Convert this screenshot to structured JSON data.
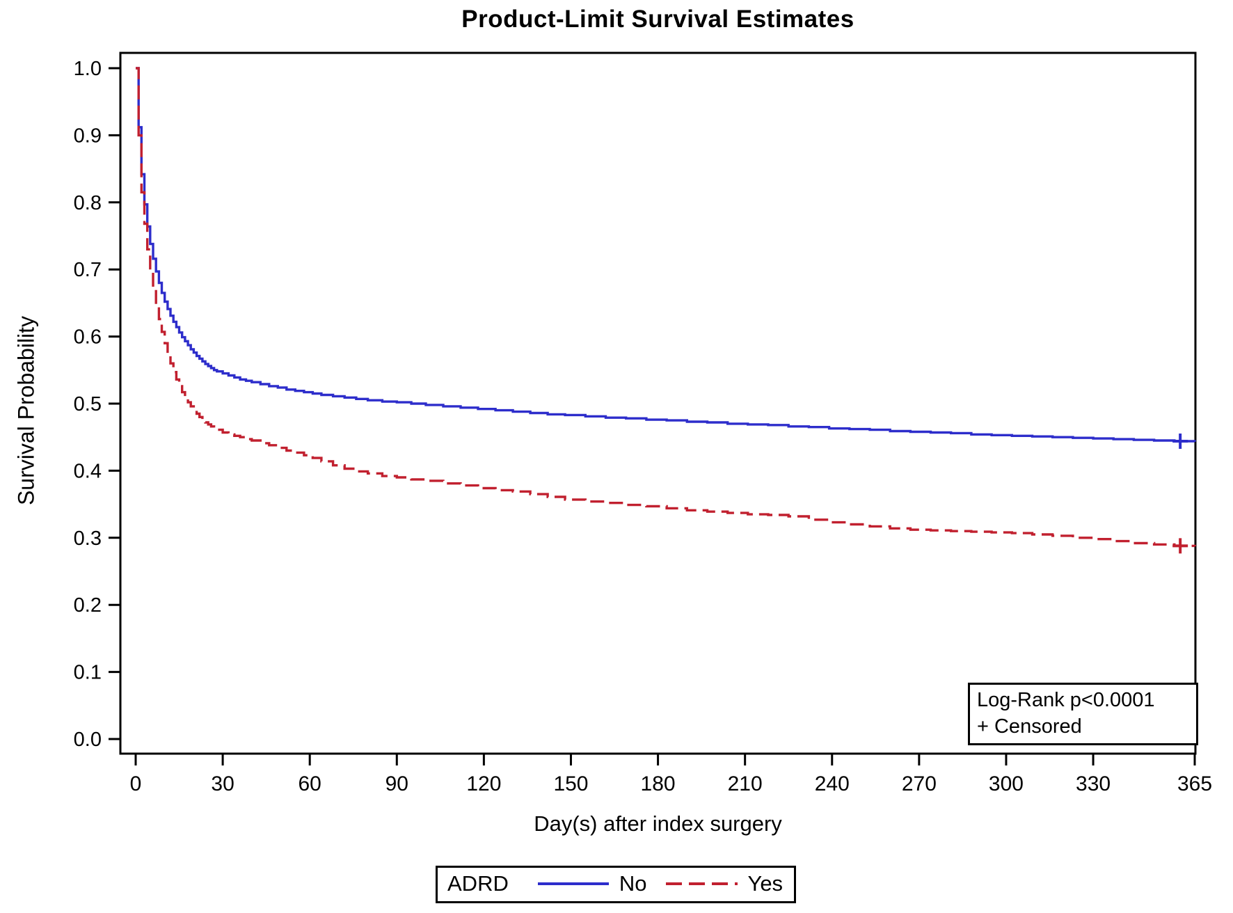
{
  "chart_data": {
    "type": "line",
    "subtype": "kaplan-meier-step",
    "title": "Product-Limit Survival Estimates",
    "xlabel": "Day(s) after index surgery",
    "ylabel": "Survival Probability",
    "xlim": [
      0,
      365
    ],
    "ylim": [
      0.0,
      1.0
    ],
    "grid": false,
    "legend_position": "bottom-center",
    "x_tick_labels": [
      "0",
      "30",
      "60",
      "90",
      "120",
      "150",
      "180",
      "210",
      "240",
      "270",
      "300",
      "330",
      "365"
    ],
    "y_tick_labels": [
      "1.0",
      "0.9",
      "0.8",
      "0.7",
      "0.6",
      "0.5",
      "0.4",
      "0.3",
      "0.2",
      "0.1",
      "0.0"
    ],
    "legend_title": "ADRD",
    "annotation": {
      "line1": "Log-Rank p<0.0001",
      "line2": "+ Censored"
    },
    "series": [
      {
        "name": "No",
        "id": "no",
        "color": "#2d2dcb",
        "line_style": "solid",
        "censor_at": [
          360,
          0.444
        ],
        "points": [
          [
            0,
            1.0
          ],
          [
            1,
            0.912
          ],
          [
            2,
            0.842
          ],
          [
            3,
            0.797
          ],
          [
            4,
            0.764
          ],
          [
            5,
            0.738
          ],
          [
            6,
            0.716
          ],
          [
            7,
            0.697
          ],
          [
            8,
            0.68
          ],
          [
            9,
            0.665
          ],
          [
            10,
            0.652
          ],
          [
            11,
            0.641
          ],
          [
            12,
            0.631
          ],
          [
            13,
            0.622
          ],
          [
            14,
            0.614
          ],
          [
            15,
            0.606
          ],
          [
            16,
            0.599
          ],
          [
            17,
            0.593
          ],
          [
            18,
            0.587
          ],
          [
            19,
            0.581
          ],
          [
            20,
            0.576
          ],
          [
            21,
            0.571
          ],
          [
            22,
            0.567
          ],
          [
            23,
            0.563
          ],
          [
            24,
            0.559
          ],
          [
            25,
            0.556
          ],
          [
            26,
            0.553
          ],
          [
            27,
            0.55
          ],
          [
            28,
            0.548
          ],
          [
            30,
            0.545
          ],
          [
            32,
            0.542
          ],
          [
            34,
            0.539
          ],
          [
            36,
            0.536
          ],
          [
            38,
            0.534
          ],
          [
            40,
            0.532
          ],
          [
            43,
            0.529
          ],
          [
            46,
            0.526
          ],
          [
            49,
            0.524
          ],
          [
            52,
            0.521
          ],
          [
            55,
            0.519
          ],
          [
            58,
            0.517
          ],
          [
            61,
            0.515
          ],
          [
            64,
            0.513
          ],
          [
            68,
            0.511
          ],
          [
            72,
            0.509
          ],
          [
            76,
            0.507
          ],
          [
            80,
            0.505
          ],
          [
            85,
            0.503
          ],
          [
            90,
            0.502
          ],
          [
            95,
            0.5
          ],
          [
            100,
            0.498
          ],
          [
            106,
            0.496
          ],
          [
            112,
            0.494
          ],
          [
            118,
            0.492
          ],
          [
            124,
            0.49
          ],
          [
            130,
            0.488
          ],
          [
            136,
            0.486
          ],
          [
            142,
            0.484
          ],
          [
            148,
            0.483
          ],
          [
            155,
            0.481
          ],
          [
            162,
            0.479
          ],
          [
            169,
            0.478
          ],
          [
            176,
            0.476
          ],
          [
            183,
            0.475
          ],
          [
            190,
            0.473
          ],
          [
            197,
            0.472
          ],
          [
            204,
            0.47
          ],
          [
            211,
            0.469
          ],
          [
            218,
            0.468
          ],
          [
            225,
            0.466
          ],
          [
            232,
            0.465
          ],
          [
            239,
            0.463
          ],
          [
            246,
            0.462
          ],
          [
            253,
            0.461
          ],
          [
            260,
            0.459
          ],
          [
            267,
            0.458
          ],
          [
            274,
            0.457
          ],
          [
            281,
            0.456
          ],
          [
            288,
            0.454
          ],
          [
            295,
            0.453
          ],
          [
            302,
            0.452
          ],
          [
            309,
            0.451
          ],
          [
            316,
            0.45
          ],
          [
            323,
            0.449
          ],
          [
            330,
            0.448
          ],
          [
            337,
            0.447
          ],
          [
            344,
            0.446
          ],
          [
            351,
            0.445
          ],
          [
            358,
            0.444
          ],
          [
            365,
            0.443
          ]
        ]
      },
      {
        "name": "Yes",
        "id": "yes",
        "color": "#c1202f",
        "line_style": "dashed",
        "censor_at": [
          360,
          0.288
        ],
        "points": [
          [
            0,
            1.0
          ],
          [
            1,
            0.9
          ],
          [
            2,
            0.815
          ],
          [
            3,
            0.768
          ],
          [
            4,
            0.73
          ],
          [
            5,
            0.698
          ],
          [
            6,
            0.671
          ],
          [
            7,
            0.647
          ],
          [
            8,
            0.626
          ],
          [
            9,
            0.607
          ],
          [
            10,
            0.59
          ],
          [
            11,
            0.574
          ],
          [
            12,
            0.56
          ],
          [
            13,
            0.547
          ],
          [
            14,
            0.536
          ],
          [
            15,
            0.526
          ],
          [
            16,
            0.517
          ],
          [
            17,
            0.509
          ],
          [
            18,
            0.502
          ],
          [
            19,
            0.496
          ],
          [
            20,
            0.49
          ],
          [
            21,
            0.485
          ],
          [
            22,
            0.48
          ],
          [
            23,
            0.476
          ],
          [
            24,
            0.472
          ],
          [
            25,
            0.469
          ],
          [
            26,
            0.466
          ],
          [
            27,
            0.463
          ],
          [
            28,
            0.461
          ],
          [
            30,
            0.457
          ],
          [
            32,
            0.454
          ],
          [
            34,
            0.452
          ],
          [
            36,
            0.45
          ],
          [
            38,
            0.447
          ],
          [
            40,
            0.445
          ],
          [
            43,
            0.441
          ],
          [
            46,
            0.438
          ],
          [
            49,
            0.434
          ],
          [
            52,
            0.43
          ],
          [
            55,
            0.427
          ],
          [
            58,
            0.423
          ],
          [
            61,
            0.419
          ],
          [
            64,
            0.414
          ],
          [
            68,
            0.408
          ],
          [
            72,
            0.403
          ],
          [
            76,
            0.399
          ],
          [
            80,
            0.396
          ],
          [
            85,
            0.392
          ],
          [
            90,
            0.39
          ],
          [
            95,
            0.387
          ],
          [
            100,
            0.385
          ],
          [
            106,
            0.381
          ],
          [
            112,
            0.378
          ],
          [
            118,
            0.374
          ],
          [
            124,
            0.371
          ],
          [
            130,
            0.369
          ],
          [
            136,
            0.365
          ],
          [
            142,
            0.361
          ],
          [
            148,
            0.357
          ],
          [
            155,
            0.354
          ],
          [
            162,
            0.352
          ],
          [
            169,
            0.349
          ],
          [
            176,
            0.347
          ],
          [
            183,
            0.344
          ],
          [
            190,
            0.341
          ],
          [
            197,
            0.339
          ],
          [
            204,
            0.337
          ],
          [
            211,
            0.335
          ],
          [
            218,
            0.334
          ],
          [
            225,
            0.332
          ],
          [
            232,
            0.327
          ],
          [
            239,
            0.323
          ],
          [
            246,
            0.32
          ],
          [
            253,
            0.317
          ],
          [
            260,
            0.314
          ],
          [
            267,
            0.312
          ],
          [
            274,
            0.311
          ],
          [
            281,
            0.31
          ],
          [
            288,
            0.309
          ],
          [
            295,
            0.308
          ],
          [
            302,
            0.307
          ],
          [
            309,
            0.305
          ],
          [
            316,
            0.303
          ],
          [
            323,
            0.3
          ],
          [
            330,
            0.298
          ],
          [
            337,
            0.295
          ],
          [
            344,
            0.292
          ],
          [
            351,
            0.29
          ],
          [
            358,
            0.288
          ],
          [
            365,
            0.287
          ]
        ]
      }
    ]
  }
}
